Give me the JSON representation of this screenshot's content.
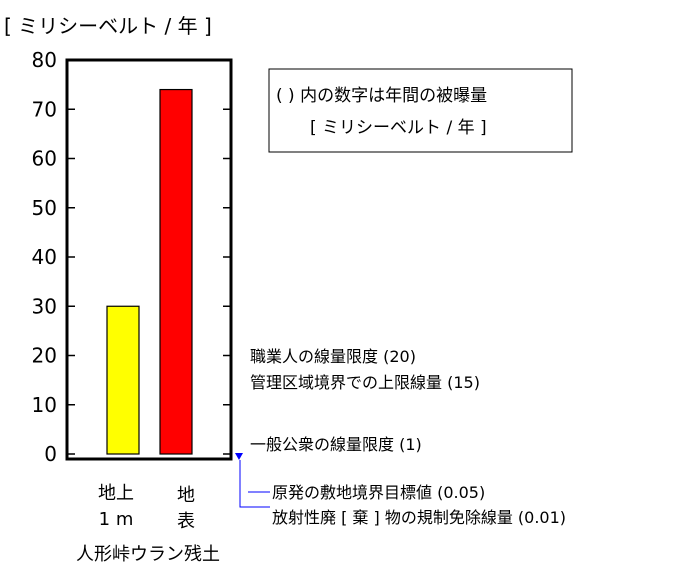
{
  "chart_data": {
    "type": "bar",
    "unit_label": "[ ミリシーベルト / 年 ]",
    "ylim": [
      0,
      80
    ],
    "yticks": [
      0,
      10,
      20,
      30,
      40,
      50,
      60,
      70,
      80
    ],
    "grid": false,
    "categories": [
      {
        "line1": "地上",
        "line2": "1 m"
      },
      {
        "line1": "地",
        "line2": "表"
      }
    ],
    "values": [
      30,
      74
    ],
    "colors": [
      "#ffff00",
      "#ff0000"
    ],
    "group_label": "人形峠ウラン残土",
    "legend_box": {
      "line1": "( ) 内の数字は年間の被曝量",
      "line2": "[ ミリシーベルト / 年 ]"
    },
    "annotations": [
      {
        "text": "職業人の線量限度 (20)",
        "value": 20
      },
      {
        "text": "管理区域境界での上限線量 (15)",
        "value": 15
      },
      {
        "text": "一般公衆の線量限度 (1)",
        "value": 1
      },
      {
        "text": "原発の敷地境界目標値 (0.05)",
        "value": 0.05
      },
      {
        "text": "放射性廃 [ 棄 ] 物の規制免除線量 (0.01)",
        "value": 0.01
      }
    ],
    "marker_color": "#0000ff"
  }
}
